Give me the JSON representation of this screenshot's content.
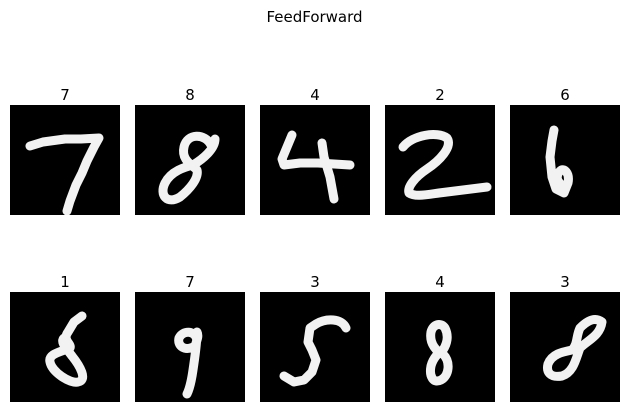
{
  "figure": {
    "title": "FeedForward"
  },
  "panels": [
    {
      "label": "7",
      "digit_shape": "7"
    },
    {
      "label": "8",
      "digit_shape": "8"
    },
    {
      "label": "4",
      "digit_shape": "4"
    },
    {
      "label": "2",
      "digit_shape": "2"
    },
    {
      "label": "6",
      "digit_shape": "6"
    },
    {
      "label": "1",
      "digit_shape": "8"
    },
    {
      "label": "7",
      "digit_shape": "9"
    },
    {
      "label": "3",
      "digit_shape": "5"
    },
    {
      "label": "4",
      "digit_shape": "8"
    },
    {
      "label": "3",
      "digit_shape": "8"
    }
  ],
  "colors": {
    "image_background": "#000000",
    "stroke": "#f2f2f2",
    "page_background": "#ffffff"
  }
}
